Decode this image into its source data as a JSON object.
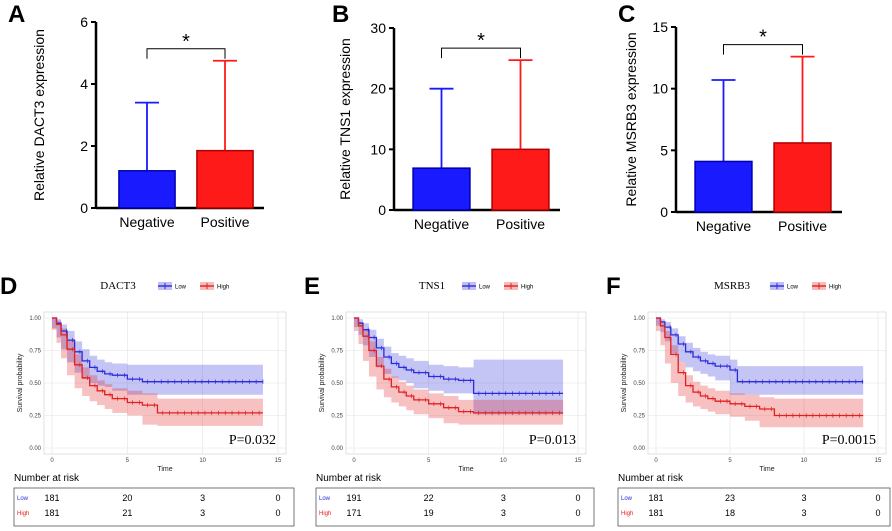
{
  "chart_data": [
    {
      "panel": "A",
      "type": "bar",
      "ylabel": "Relative DACT3 expression",
      "categories": [
        "Negative",
        "Positive"
      ],
      "values": [
        1.2,
        1.85
      ],
      "errors_upper": [
        3.4,
        4.75
      ],
      "colors": [
        "#1a1aff",
        "#ff1a1a"
      ],
      "ylim": [
        0,
        6
      ],
      "yticks": [
        0,
        2,
        4,
        6
      ],
      "significance": "*"
    },
    {
      "panel": "B",
      "type": "bar",
      "ylabel": "Relative TNS1 expression",
      "categories": [
        "Negative",
        "Positive"
      ],
      "values": [
        6.9,
        10.0
      ],
      "errors_upper": [
        20.0,
        24.7
      ],
      "colors": [
        "#1a1aff",
        "#ff1a1a"
      ],
      "ylim": [
        0,
        30
      ],
      "yticks": [
        0,
        10,
        20,
        30
      ],
      "significance": "*"
    },
    {
      "panel": "C",
      "type": "bar",
      "ylabel": "Relative MSRB3 expression",
      "categories": [
        "Negative",
        "Positive"
      ],
      "values": [
        4.1,
        5.6
      ],
      "errors_upper": [
        10.7,
        12.6
      ],
      "colors": [
        "#1a1aff",
        "#ff1a1a"
      ],
      "ylim": [
        0,
        15
      ],
      "yticks": [
        0,
        5,
        10,
        15
      ],
      "significance": "*"
    },
    {
      "panel": "D",
      "type": "line",
      "title": "DACT3",
      "legend": [
        "Low",
        "High"
      ],
      "xlabel": "Time",
      "ylabel": "Survival probability",
      "xlim": [
        0,
        15
      ],
      "xticks": [
        0,
        5,
        10,
        15
      ],
      "ylim": [
        0,
        1
      ],
      "yticks": [
        "0.00",
        "0.25",
        "0.50",
        "0.75",
        "1.00"
      ],
      "pvalue": "P=0.032",
      "series": [
        {
          "name": "Low",
          "color": "#2b2bdc",
          "x": [
            0,
            0.3,
            0.6,
            1,
            1.5,
            2,
            2.5,
            3,
            3.5,
            4,
            5,
            6,
            14
          ],
          "y": [
            1,
            0.96,
            0.9,
            0.83,
            0.74,
            0.67,
            0.62,
            0.59,
            0.57,
            0.56,
            0.53,
            0.51,
            0.51
          ],
          "lower": [
            1,
            0.92,
            0.85,
            0.76,
            0.66,
            0.58,
            0.53,
            0.5,
            0.48,
            0.47,
            0.44,
            0.41,
            0.41
          ],
          "upper": [
            1,
            0.99,
            0.95,
            0.9,
            0.82,
            0.76,
            0.71,
            0.68,
            0.66,
            0.65,
            0.64,
            0.64,
            0.64
          ]
        },
        {
          "name": "High",
          "color": "#e22020",
          "x": [
            0,
            0.3,
            0.6,
            1,
            1.5,
            2,
            2.5,
            3,
            3.5,
            4,
            5,
            6,
            7,
            8,
            14
          ],
          "y": [
            1,
            0.95,
            0.87,
            0.76,
            0.64,
            0.54,
            0.48,
            0.44,
            0.41,
            0.38,
            0.35,
            0.33,
            0.27,
            0.27,
            0.27
          ],
          "lower": [
            1,
            0.91,
            0.81,
            0.69,
            0.56,
            0.46,
            0.4,
            0.36,
            0.33,
            0.3,
            0.27,
            0.25,
            0.18,
            0.17,
            0.17
          ],
          "upper": [
            1,
            0.98,
            0.92,
            0.83,
            0.72,
            0.62,
            0.56,
            0.52,
            0.49,
            0.46,
            0.44,
            0.42,
            0.38,
            0.38,
            0.38
          ]
        }
      ],
      "risk_table": {
        "title": "Number at risk",
        "rows": [
          {
            "label": "Low",
            "counts": [
              "181",
              "20",
              "3",
              "0"
            ]
          },
          {
            "label": "High",
            "counts": [
              "181",
              "21",
              "3",
              "0"
            ]
          }
        ]
      }
    },
    {
      "panel": "E",
      "type": "line",
      "title": "TNS1",
      "legend": [
        "Low",
        "High"
      ],
      "xlabel": "Time",
      "ylabel": "Survival probability",
      "xlim": [
        0,
        15
      ],
      "xticks": [
        0,
        5,
        10,
        15
      ],
      "ylim": [
        0,
        1
      ],
      "yticks": [
        "0.00",
        "0.25",
        "0.50",
        "0.75",
        "1.00"
      ],
      "pvalue": "P=0.013",
      "series": [
        {
          "name": "Low",
          "color": "#2b2bdc",
          "x": [
            0,
            0.3,
            0.6,
            1,
            1.5,
            2,
            2.5,
            3,
            3.5,
            4,
            5,
            6,
            7,
            8,
            8.01,
            14
          ],
          "y": [
            1,
            0.96,
            0.91,
            0.85,
            0.77,
            0.7,
            0.65,
            0.62,
            0.6,
            0.58,
            0.55,
            0.53,
            0.52,
            0.52,
            0.42,
            0.42
          ],
          "lower": [
            1,
            0.93,
            0.87,
            0.79,
            0.7,
            0.62,
            0.57,
            0.54,
            0.52,
            0.5,
            0.46,
            0.44,
            0.42,
            0.42,
            0.26,
            0.26
          ],
          "upper": [
            1,
            0.99,
            0.96,
            0.91,
            0.84,
            0.78,
            0.73,
            0.71,
            0.69,
            0.67,
            0.64,
            0.63,
            0.62,
            0.62,
            0.68,
            0.68
          ]
        },
        {
          "name": "High",
          "color": "#e22020",
          "x": [
            0,
            0.3,
            0.6,
            1,
            1.5,
            2,
            2.5,
            3,
            3.5,
            4,
            5,
            6,
            7,
            8,
            14
          ],
          "y": [
            1,
            0.94,
            0.86,
            0.75,
            0.63,
            0.53,
            0.47,
            0.43,
            0.4,
            0.37,
            0.34,
            0.31,
            0.28,
            0.27,
            0.27
          ],
          "lower": [
            1,
            0.9,
            0.8,
            0.67,
            0.55,
            0.45,
            0.39,
            0.35,
            0.32,
            0.29,
            0.26,
            0.23,
            0.19,
            0.18,
            0.18
          ],
          "upper": [
            1,
            0.97,
            0.91,
            0.82,
            0.7,
            0.61,
            0.55,
            0.51,
            0.48,
            0.45,
            0.42,
            0.4,
            0.37,
            0.37,
            0.37
          ]
        }
      ],
      "risk_table": {
        "title": "Number at risk",
        "rows": [
          {
            "label": "Low",
            "counts": [
              "191",
              "22",
              "3",
              "0"
            ]
          },
          {
            "label": "High",
            "counts": [
              "171",
              "19",
              "3",
              "0"
            ]
          }
        ]
      }
    },
    {
      "panel": "F",
      "type": "line",
      "title": "MSRB3",
      "legend": [
        "Low",
        "High"
      ],
      "xlabel": "Time",
      "ylabel": "Survival probability",
      "xlim": [
        0,
        15
      ],
      "xticks": [
        0,
        5,
        10,
        15
      ],
      "ylim": [
        0,
        1
      ],
      "yticks": [
        "0.00",
        "0.25",
        "0.50",
        "0.75",
        "1.00"
      ],
      "pvalue": "P=0.0015",
      "series": [
        {
          "name": "Low",
          "color": "#2b2bdc",
          "x": [
            0,
            0.3,
            0.6,
            1,
            1.5,
            2,
            2.5,
            3,
            3.5,
            4,
            5,
            5.5,
            14
          ],
          "y": [
            1,
            0.97,
            0.93,
            0.87,
            0.8,
            0.74,
            0.7,
            0.67,
            0.65,
            0.63,
            0.6,
            0.51,
            0.51
          ],
          "lower": [
            1,
            0.94,
            0.89,
            0.82,
            0.73,
            0.66,
            0.62,
            0.59,
            0.57,
            0.55,
            0.52,
            0.41,
            0.41
          ],
          "upper": [
            1,
            0.99,
            0.97,
            0.92,
            0.86,
            0.81,
            0.77,
            0.74,
            0.72,
            0.71,
            0.68,
            0.63,
            0.63
          ]
        },
        {
          "name": "High",
          "color": "#e22020",
          "x": [
            0,
            0.3,
            0.6,
            1,
            1.5,
            2,
            2.5,
            3,
            3.5,
            4,
            5,
            6,
            7,
            8,
            14
          ],
          "y": [
            1,
            0.94,
            0.85,
            0.72,
            0.58,
            0.48,
            0.43,
            0.4,
            0.38,
            0.36,
            0.34,
            0.32,
            0.3,
            0.25,
            0.25
          ],
          "lower": [
            1,
            0.9,
            0.79,
            0.65,
            0.5,
            0.4,
            0.35,
            0.32,
            0.3,
            0.28,
            0.26,
            0.24,
            0.21,
            0.16,
            0.16
          ],
          "upper": [
            1,
            0.97,
            0.9,
            0.79,
            0.66,
            0.56,
            0.51,
            0.48,
            0.46,
            0.44,
            0.42,
            0.41,
            0.39,
            0.38,
            0.38
          ]
        }
      ],
      "risk_table": {
        "title": "Number at risk",
        "rows": [
          {
            "label": "Low",
            "counts": [
              "181",
              "23",
              "3",
              "0"
            ]
          },
          {
            "label": "High",
            "counts": [
              "181",
              "18",
              "3",
              "0"
            ]
          }
        ]
      }
    }
  ]
}
